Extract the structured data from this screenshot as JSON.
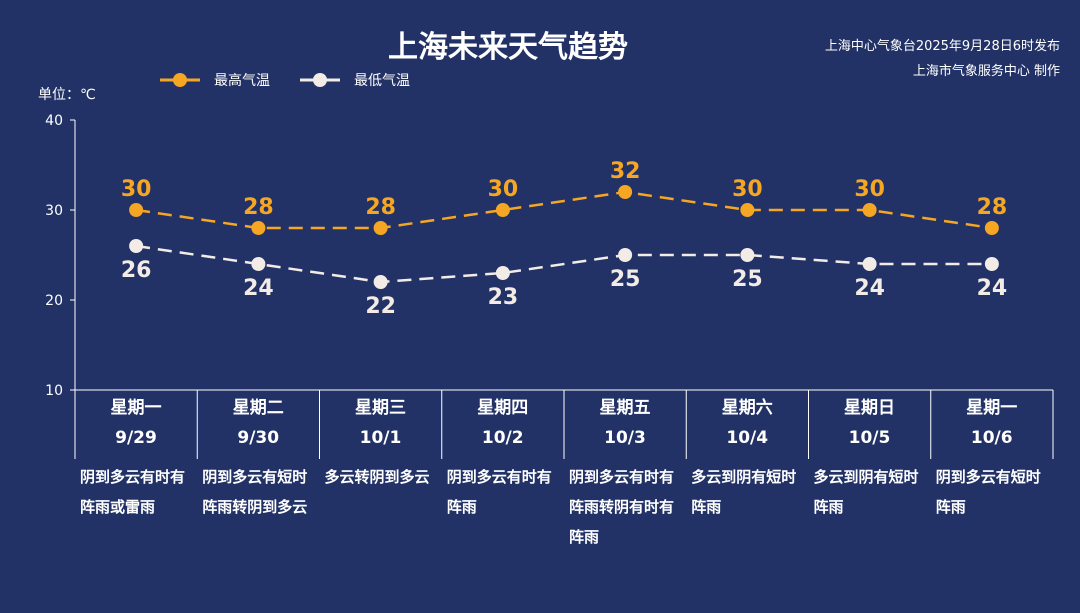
{
  "title": "上海未来天气趋势",
  "source": {
    "line1": "上海中心气象台2025年9月28日6时发布",
    "line2": "上海市气象服务中心 制作"
  },
  "unit_label": "单位：℃",
  "colors": {
    "high": "#F5A623",
    "low": "#F3ECE6",
    "background": "#223266",
    "axis": "#FFFFFF"
  },
  "chart_data": {
    "type": "line",
    "categories": [
      "9/29",
      "9/30",
      "10/1",
      "10/2",
      "10/3",
      "10/4",
      "10/5",
      "10/6"
    ],
    "weekdays": [
      "星期一",
      "星期二",
      "星期三",
      "星期四",
      "星期五",
      "星期六",
      "星期日",
      "星期一"
    ],
    "series": [
      {
        "name": "最高气温",
        "values": [
          30,
          28,
          28,
          30,
          32,
          30,
          30,
          28
        ],
        "color": "#F5A623",
        "label_position": "above"
      },
      {
        "name": "最低气温",
        "values": [
          26,
          24,
          22,
          23,
          25,
          25,
          24,
          24
        ],
        "color": "#F3ECE6",
        "label_position": "below"
      }
    ],
    "ylim": [
      10,
      40
    ],
    "yticks": [
      10,
      20,
      30,
      40
    ],
    "line_style": "dashed",
    "legend_position": "top-left"
  },
  "descriptions": [
    "阴到多云有时有阵雨或雷雨",
    "阴到多云有短时阵雨转阴到多云",
    "多云转阴到多云",
    "阴到多云有时有阵雨",
    "阴到多云有时有阵雨转阴有时有阵雨",
    "多云到阴有短时阵雨",
    "多云到阴有短时阵雨",
    "阴到多云有短时阵雨"
  ]
}
